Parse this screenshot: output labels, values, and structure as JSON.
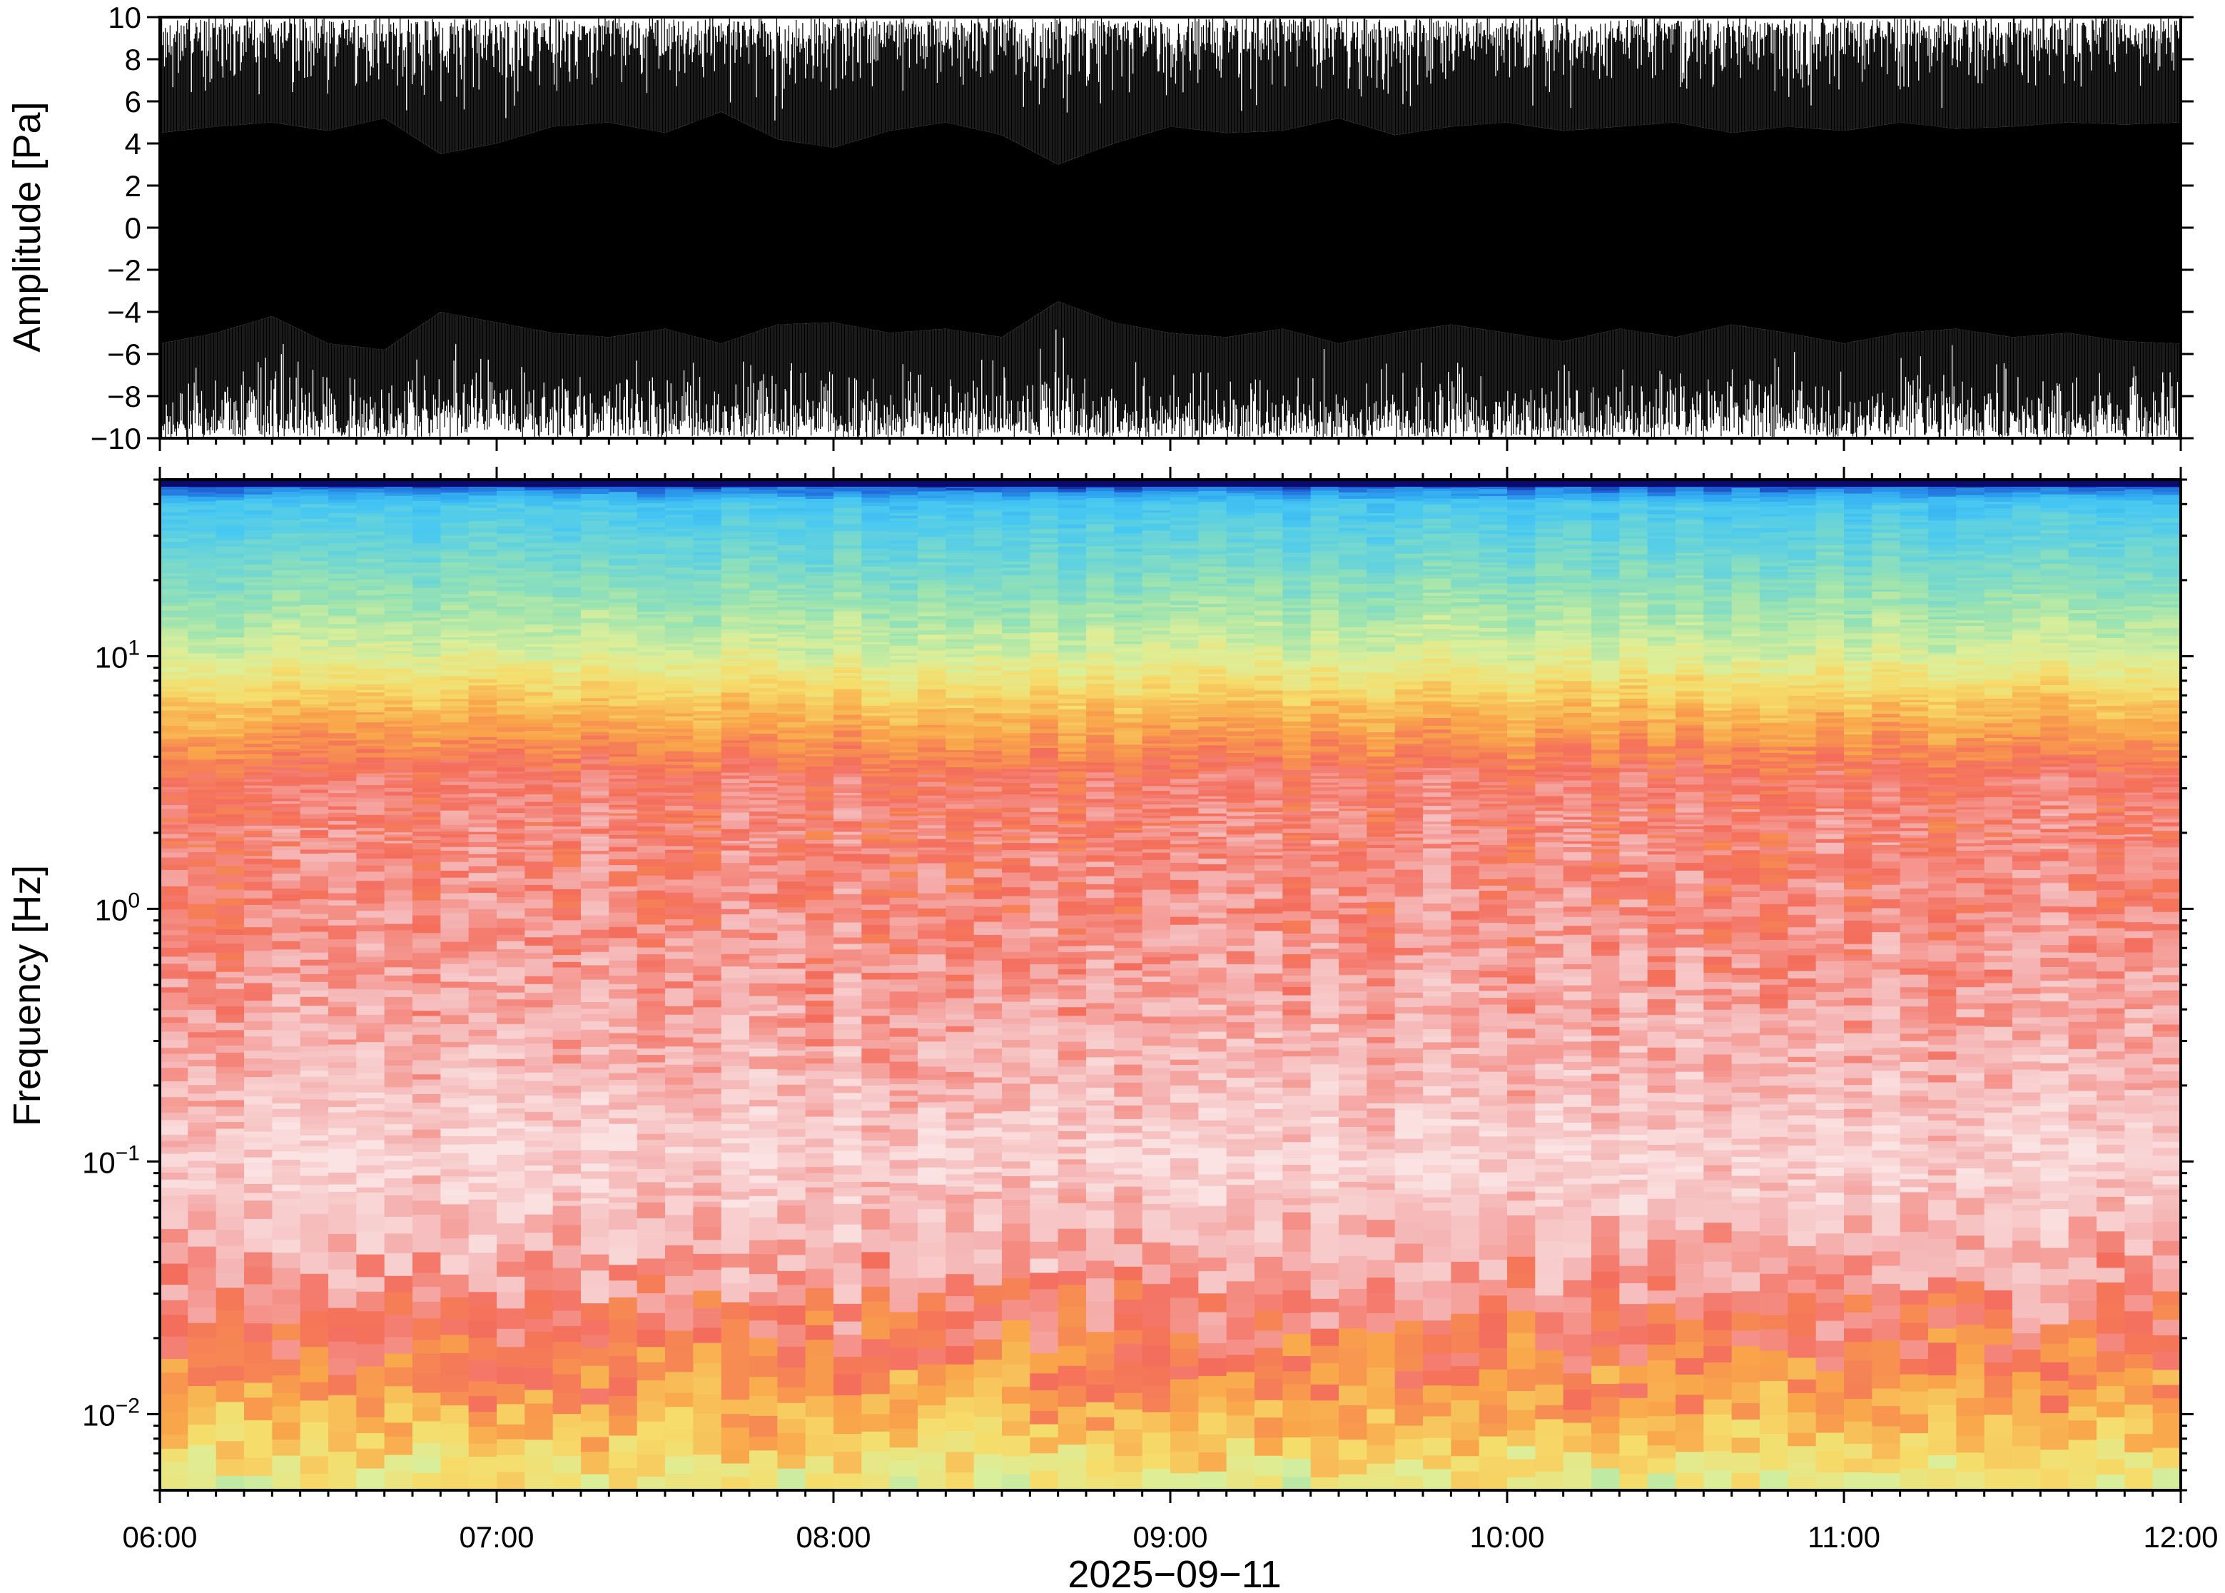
{
  "chart_data": [
    {
      "type": "line",
      "ylabel": "Amplitude [Pa]",
      "ylim": [
        -10,
        10
      ],
      "yticks": [
        -10,
        -8,
        -6,
        -4,
        -2,
        0,
        2,
        4,
        6,
        8,
        10
      ],
      "ytick_labels": [
        "−10",
        "−8",
        "−6",
        "−4",
        "−2",
        "0",
        "2",
        "4",
        "6",
        "8",
        "10"
      ],
      "xlim": [
        "06:00",
        "12:00"
      ],
      "color": "#000000",
      "series": [
        {
          "name": "",
          "x_minutes": [
            0,
            10,
            20,
            30,
            40,
            50,
            60,
            70,
            80,
            90,
            100,
            110,
            120,
            130,
            140,
            150,
            160,
            170,
            180,
            190,
            200,
            210,
            220,
            230,
            240,
            250,
            260,
            270,
            280,
            290,
            300,
            310,
            320,
            330,
            340,
            350,
            360
          ],
          "max": [
            10,
            10,
            10,
            10,
            10,
            10,
            10,
            10,
            10,
            10,
            10,
            10,
            10,
            10,
            10,
            10,
            10,
            10,
            10,
            10,
            10,
            10,
            10,
            10,
            10,
            10,
            10,
            10,
            10,
            10,
            10,
            10,
            10,
            10,
            10,
            10,
            10
          ],
          "min": [
            -10,
            -10,
            -10,
            -10,
            -10,
            -10,
            -10,
            -10,
            -10,
            -10,
            -10,
            -10,
            -10,
            -10,
            -10,
            -10,
            -10,
            -10,
            -10,
            -10,
            -10,
            -10,
            -10,
            -10,
            -10,
            -10,
            -10,
            -10,
            -10,
            -10,
            -10,
            -10,
            -10,
            -10,
            -10,
            -10,
            -10
          ],
          "core_upper": [
            4.5,
            4.8,
            5.0,
            4.6,
            5.2,
            3.5,
            4.0,
            4.8,
            5.0,
            4.5,
            5.5,
            4.2,
            3.8,
            4.6,
            5.0,
            4.4,
            3.0,
            4.0,
            4.8,
            4.5,
            4.6,
            5.2,
            4.4,
            4.8,
            5.0,
            4.6,
            4.8,
            5.0,
            4.5,
            4.8,
            4.6,
            5.0,
            4.7,
            4.8,
            5.0,
            4.9,
            5.0
          ],
          "core_lower": [
            -5.5,
            -5.0,
            -4.2,
            -5.5,
            -5.8,
            -4.0,
            -4.5,
            -5.0,
            -5.2,
            -4.8,
            -5.5,
            -4.6,
            -4.5,
            -5.0,
            -4.8,
            -5.2,
            -3.5,
            -4.5,
            -5.0,
            -5.2,
            -4.8,
            -5.5,
            -5.0,
            -4.6,
            -5.0,
            -5.4,
            -4.8,
            -5.2,
            -4.6,
            -5.0,
            -5.5,
            -5.0,
            -4.8,
            -5.2,
            -5.0,
            -5.4,
            -5.5
          ]
        }
      ]
    },
    {
      "type": "heatmap",
      "ylabel": "Frequency [Hz]",
      "yscale": "log",
      "ylim": [
        0.005,
        50
      ],
      "ytick_labels": [
        {
          "value": 0.01,
          "base": "10",
          "exp": "−2"
        },
        {
          "value": 0.1,
          "base": "10",
          "exp": "−1"
        },
        {
          "value": 1,
          "base": "10",
          "exp": "0"
        },
        {
          "value": 10,
          "base": "10",
          "exp": "1"
        }
      ],
      "xlabel": "2025−09−11",
      "xtick_labels": [
        "06:00",
        "07:00",
        "08:00",
        "09:00",
        "10:00",
        "11:00",
        "12:00"
      ],
      "xlim": [
        "06:00",
        "12:00"
      ],
      "colormap": [
        "#0a0a6e",
        "#1f5fd6",
        "#2fa6f0",
        "#47c8f2",
        "#6ed6d4",
        "#9be3b0",
        "#dcef9a",
        "#f6dc6a",
        "#f9a64a",
        "#f46d5c",
        "#f5b6b6",
        "#fbe3e3"
      ],
      "value_profile_log10f": [
        -2.3,
        -2.0,
        -1.7,
        -1.4,
        -1.0,
        -0.6,
        0.0,
        0.5,
        0.8,
        1.0,
        1.3,
        1.6,
        1.7
      ],
      "value_profile_colorindex": [
        6.5,
        8.0,
        9.0,
        10.0,
        10.6,
        10.0,
        9.4,
        9.2,
        7.5,
        6.0,
        4.5,
        3.0,
        0.0
      ]
    }
  ]
}
